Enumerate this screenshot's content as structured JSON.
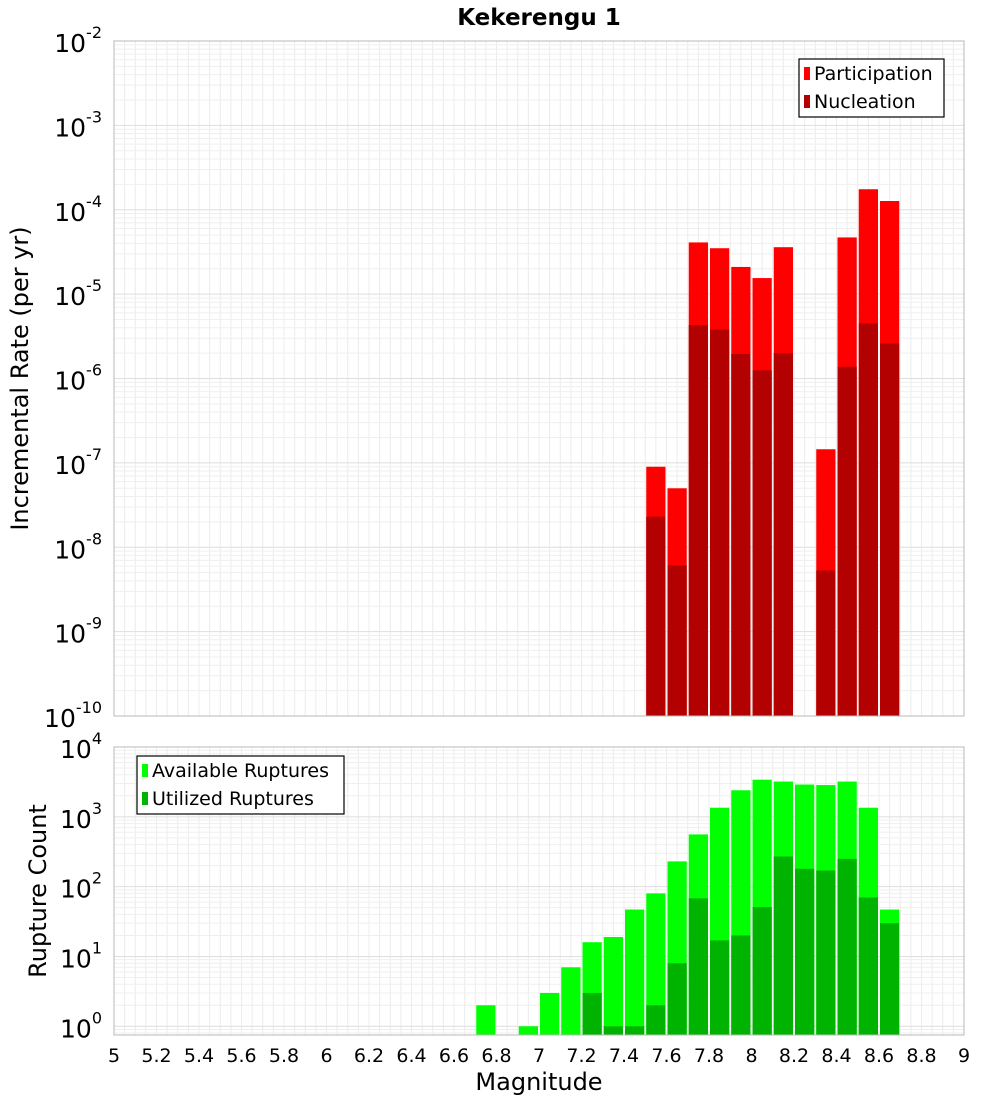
{
  "chart_data": [
    {
      "type": "bar",
      "title": "Kekerengu 1",
      "ylabel": "Incremental Rate (per yr)",
      "xlabel": "",
      "scale_y": "log",
      "xlim": [
        5,
        9
      ],
      "ylim": [
        1e-10,
        0.01
      ],
      "y_ticks": [
        "10^-10",
        "10^-9",
        "10^-8",
        "10^-7",
        "10^-6",
        "10^-5",
        "10^-4",
        "10^-3",
        "10^-2"
      ],
      "grid": true,
      "legend_position": "top-right",
      "bin_width": 0.1,
      "x": [
        7.55,
        7.65,
        7.75,
        7.85,
        7.95,
        8.05,
        8.15,
        8.35,
        8.45,
        8.55,
        8.65
      ],
      "series": [
        {
          "name": "Participation",
          "color": "#ff0000",
          "values": [
            9e-08,
            5e-08,
            4.1e-05,
            3.5e-05,
            2.1e-05,
            1.55e-05,
            3.6e-05,
            1.45e-07,
            4.7e-05,
            0.000175,
            0.000127
          ]
        },
        {
          "name": "Nucleation",
          "color": "#b30000",
          "values": [
            2.3e-08,
            6.1e-09,
            4.3e-06,
            3.8e-06,
            1.95e-06,
            1.25e-06,
            2e-06,
            5.3e-09,
            1.38e-06,
            4.5e-06,
            2.6e-06
          ]
        }
      ]
    },
    {
      "type": "bar",
      "title": "",
      "ylabel": "Rupture Count",
      "xlabel": "Magnitude",
      "scale_y": "log",
      "xlim": [
        5,
        9
      ],
      "ylim": [
        0.75,
        10000
      ],
      "y_ticks": [
        "10^0",
        "10^1",
        "10^2",
        "10^3",
        "10^4"
      ],
      "x_ticks": [
        "5",
        "5.2",
        "5.4",
        "5.6",
        "5.8",
        "6",
        "6.2",
        "6.4",
        "6.6",
        "6.8",
        "7",
        "7.2",
        "7.4",
        "7.6",
        "7.8",
        "8",
        "8.2",
        "8.4",
        "8.6",
        "8.8",
        "9"
      ],
      "grid": true,
      "legend_position": "top-left",
      "bin_width": 0.1,
      "x": [
        6.75,
        6.85,
        6.95,
        7.05,
        7.15,
        7.25,
        7.35,
        7.45,
        7.55,
        7.65,
        7.75,
        7.85,
        7.95,
        8.05,
        8.15,
        8.25,
        8.35,
        8.45,
        8.55,
        8.65
      ],
      "series": [
        {
          "name": "Available Ruptures",
          "color": "#00ff00",
          "values": [
            2,
            0,
            1,
            3,
            7,
            16,
            19,
            47,
            80,
            230,
            560,
            1350,
            2400,
            3400,
            3200,
            2900,
            2850,
            3200,
            1350,
            47
          ]
        },
        {
          "name": "Utilized Ruptures",
          "color": "#00b300",
          "values": [
            0,
            0,
            0,
            0,
            0,
            3,
            1,
            1,
            2,
            8,
            68,
            17,
            20,
            51,
            270,
            180,
            170,
            250,
            70,
            30
          ]
        }
      ]
    }
  ]
}
